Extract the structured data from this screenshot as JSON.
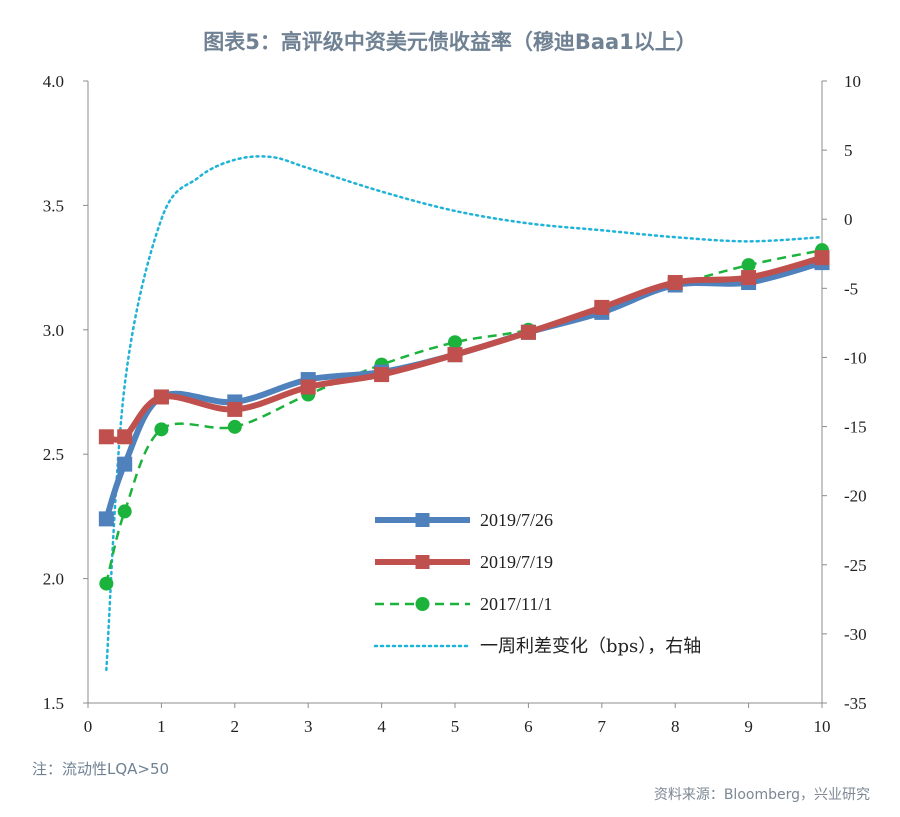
{
  "title": "图表5：高评级中资美元债收益率（穆迪Baa1以上）",
  "note": "注：流动性LQA>50",
  "source": "资料来源：Bloomberg，兴业研究",
  "chart_data": {
    "type": "line",
    "x_ticks": [
      "0",
      "1",
      "2",
      "3",
      "4",
      "5",
      "6",
      "7",
      "8",
      "9",
      "10"
    ],
    "y_left_ticks": [
      "1.5",
      "2.0",
      "2.5",
      "3.0",
      "3.5",
      "4.0"
    ],
    "y_right_ticks": [
      "10",
      "5",
      "0",
      "-5",
      "-10",
      "-15",
      "-20",
      "-25",
      "-30",
      "-35"
    ],
    "xlim": [
      0,
      10
    ],
    "ylim_left": [
      1.5,
      4.0
    ],
    "ylim_right": [
      -35,
      10
    ],
    "series": [
      {
        "name": "2019/7/26",
        "axis": "left",
        "color": "#4f81bd",
        "style": "solid-thick",
        "marker": "square",
        "x": [
          0.25,
          0.5,
          1,
          2,
          3,
          4,
          5,
          6,
          7,
          8,
          9,
          10
        ],
        "y": [
          2.24,
          2.46,
          2.73,
          2.71,
          2.8,
          2.83,
          2.9,
          2.99,
          3.07,
          3.18,
          3.19,
          3.27
        ]
      },
      {
        "name": "2019/7/19",
        "axis": "left",
        "color": "#c0504d",
        "style": "solid-thick",
        "marker": "square",
        "x": [
          0.25,
          0.5,
          1,
          2,
          3,
          4,
          5,
          6,
          7,
          8,
          9,
          10
        ],
        "y": [
          2.57,
          2.57,
          2.73,
          2.68,
          2.77,
          2.82,
          2.9,
          2.99,
          3.09,
          3.19,
          3.21,
          3.29
        ]
      },
      {
        "name": "2017/11/1",
        "axis": "left",
        "color": "#1bb33c",
        "style": "dashed",
        "marker": "circle",
        "x": [
          0.25,
          0.5,
          1,
          2,
          3,
          4,
          5,
          6,
          7,
          8,
          9,
          10
        ],
        "y": [
          1.98,
          2.27,
          2.6,
          2.61,
          2.74,
          2.86,
          2.95,
          3.0,
          3.09,
          3.18,
          3.26,
          3.32
        ]
      },
      {
        "name": "一周利差变化（bps），右轴",
        "axis": "right",
        "color": "#1fb3d8",
        "style": "dotted",
        "marker": "none",
        "x": [
          0.25,
          0.5,
          1,
          1.5,
          2,
          2.5,
          3,
          4,
          5,
          6,
          7,
          8,
          9,
          10
        ],
        "y": [
          -32.6,
          -12,
          0,
          3,
          4.3,
          4.5,
          3.7,
          2.0,
          0.6,
          -0.3,
          -0.8,
          -1.3,
          -1.6,
          -1.3
        ]
      }
    ],
    "legend_position": "bottom-right"
  }
}
